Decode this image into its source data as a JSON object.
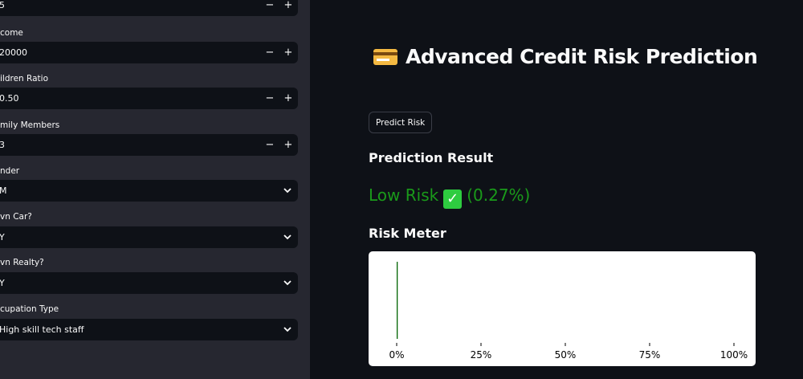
{
  "sidebar": {
    "fields": [
      {
        "label": "",
        "value": "5",
        "type": "number"
      },
      {
        "label": "come",
        "value": "20000",
        "type": "number"
      },
      {
        "label": "ildren Ratio",
        "value": "0.50",
        "type": "number"
      },
      {
        "label": "mily Members",
        "value": "3",
        "type": "number"
      },
      {
        "label": "nder",
        "value": "M",
        "type": "select"
      },
      {
        "label": "vn Car?",
        "value": "Y",
        "type": "select"
      },
      {
        "label": "vn Realty?",
        "value": "Y",
        "type": "select"
      },
      {
        "label": "cupation Type",
        "value": "High skill tech staff",
        "type": "select"
      }
    ],
    "minus": "−",
    "plus": "+",
    "chevron": "⌄"
  },
  "main": {
    "title": "Advanced Credit Risk Prediction",
    "title_icon": "credit-card-icon",
    "predict_button": "Predict Risk",
    "result_heading": "Prediction Result",
    "result_label": "Low Risk",
    "result_icon": "check-mark-button-icon",
    "result_check": "✓",
    "result_pct": "(0.27%)",
    "result_color": "#1a9a1a",
    "meter_heading": "Risk Meter"
  },
  "chart_data": {
    "type": "bar",
    "orientation": "horizontal",
    "values": [
      0.27
    ],
    "xlim": [
      0,
      100
    ],
    "xticks": [
      "0%",
      "25%",
      "50%",
      "75%",
      "100%"
    ],
    "tick_values": [
      0,
      25,
      50,
      75,
      100
    ],
    "bar_color": "#006400",
    "grid": false
  }
}
